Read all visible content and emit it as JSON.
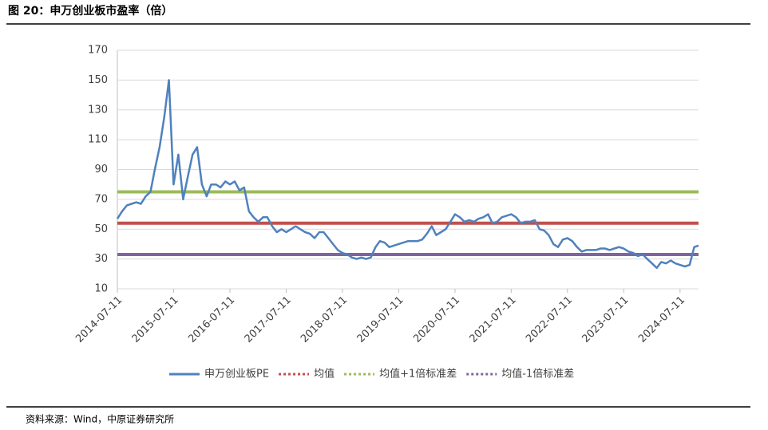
{
  "chart_data": {
    "type": "line",
    "title": "图 20：申万创业板市盈率（倍）",
    "source": "资料来源：Wind，中原证券研究所",
    "x": [
      "2014-07-11",
      "2014-08-11",
      "2014-09-11",
      "2014-10-11",
      "2014-11-11",
      "2014-12-11",
      "2015-01-11",
      "2015-02-11",
      "2015-03-11",
      "2015-04-11",
      "2015-05-11",
      "2015-06-11",
      "2015-07-11",
      "2015-08-11",
      "2015-09-11",
      "2015-10-11",
      "2015-11-11",
      "2015-12-11",
      "2016-01-11",
      "2016-02-11",
      "2016-03-11",
      "2016-04-11",
      "2016-05-11",
      "2016-06-11",
      "2016-07-11",
      "2016-08-11",
      "2016-09-11",
      "2016-10-11",
      "2016-11-11",
      "2016-12-11",
      "2017-01-11",
      "2017-02-11",
      "2017-03-11",
      "2017-04-11",
      "2017-05-11",
      "2017-06-11",
      "2017-07-11",
      "2017-08-11",
      "2017-09-11",
      "2017-10-11",
      "2017-11-11",
      "2017-12-11",
      "2018-01-11",
      "2018-02-11",
      "2018-03-11",
      "2018-04-11",
      "2018-05-11",
      "2018-06-11",
      "2018-07-11",
      "2018-08-11",
      "2018-09-11",
      "2018-10-11",
      "2018-11-11",
      "2018-12-11",
      "2019-01-11",
      "2019-02-11",
      "2019-03-11",
      "2019-04-11",
      "2019-05-11",
      "2019-06-11",
      "2019-07-11",
      "2019-08-11",
      "2019-09-11",
      "2019-10-11",
      "2019-11-11",
      "2019-12-11",
      "2020-01-11",
      "2020-02-11",
      "2020-03-11",
      "2020-04-11",
      "2020-05-11",
      "2020-06-11",
      "2020-07-11",
      "2020-08-11",
      "2020-09-11",
      "2020-10-11",
      "2020-11-11",
      "2020-12-11",
      "2021-01-11",
      "2021-02-11",
      "2021-03-11",
      "2021-04-11",
      "2021-05-11",
      "2021-06-11",
      "2021-07-11",
      "2021-08-11",
      "2021-09-11",
      "2021-10-11",
      "2021-11-11",
      "2021-12-11",
      "2022-01-11",
      "2022-02-11",
      "2022-03-11",
      "2022-04-11",
      "2022-05-11",
      "2022-06-11",
      "2022-07-11",
      "2022-08-11",
      "2022-09-11",
      "2022-10-11",
      "2022-11-11",
      "2022-12-11",
      "2023-01-11",
      "2023-02-11",
      "2023-03-11",
      "2023-04-11",
      "2023-05-11",
      "2023-06-11",
      "2023-07-11",
      "2023-08-11",
      "2023-09-11",
      "2023-10-11",
      "2023-11-11",
      "2023-12-11",
      "2024-01-11",
      "2024-02-11",
      "2024-03-11",
      "2024-04-11",
      "2024-05-11",
      "2024-06-11",
      "2024-07-11",
      "2024-08-11",
      "2024-09-11",
      "2024-10-11",
      "2024-11-08"
    ],
    "series": [
      {
        "name": "申万创业板PE",
        "color": "#4f81bd",
        "values": [
          57,
          62,
          66,
          67,
          68,
          67,
          72,
          75,
          90,
          105,
          125,
          150,
          80,
          100,
          70,
          85,
          100,
          105,
          80,
          72,
          80,
          80,
          78,
          82,
          80,
          82,
          76,
          78,
          62,
          58,
          55,
          58,
          58,
          52,
          48,
          50,
          48,
          50,
          52,
          50,
          48,
          47,
          44,
          48,
          48,
          44,
          40,
          36,
          34,
          33,
          31,
          30,
          31,
          30,
          31,
          38,
          42,
          41,
          38,
          39,
          40,
          41,
          42,
          42,
          42,
          43,
          47,
          52,
          46,
          48,
          50,
          55,
          60,
          58,
          55,
          56,
          55,
          57,
          58,
          60,
          54,
          55,
          58,
          59,
          60,
          58,
          54,
          55,
          55,
          56,
          50,
          49,
          46,
          40,
          38,
          43,
          44,
          42,
          38,
          35,
          36,
          36,
          36,
          37,
          37,
          36,
          37,
          38,
          37,
          35,
          34,
          32,
          33,
          30,
          27,
          24,
          28,
          27,
          29,
          27,
          26,
          25,
          26,
          38,
          39
        ]
      }
    ],
    "reference_lines": [
      {
        "name": "均值",
        "color": "#c0504d",
        "value": 54
      },
      {
        "name": "均值+1倍标准差",
        "color": "#9bbb59",
        "value": 75
      },
      {
        "name": "均值-1倍标准差",
        "color": "#8064a2",
        "value": 33
      }
    ],
    "xlim": [
      "2014-07-11",
      "2024-11-08"
    ],
    "xticks": [
      "2014-07-11",
      "2015-07-11",
      "2016-07-11",
      "2017-07-11",
      "2018-07-11",
      "2019-07-11",
      "2020-07-11",
      "2021-07-11",
      "2022-07-11",
      "2023-07-11",
      "2024-07-11"
    ],
    "ylim": [
      10,
      170
    ],
    "yticks": [
      10,
      30,
      50,
      70,
      90,
      110,
      130,
      150,
      170
    ],
    "grid": true
  }
}
